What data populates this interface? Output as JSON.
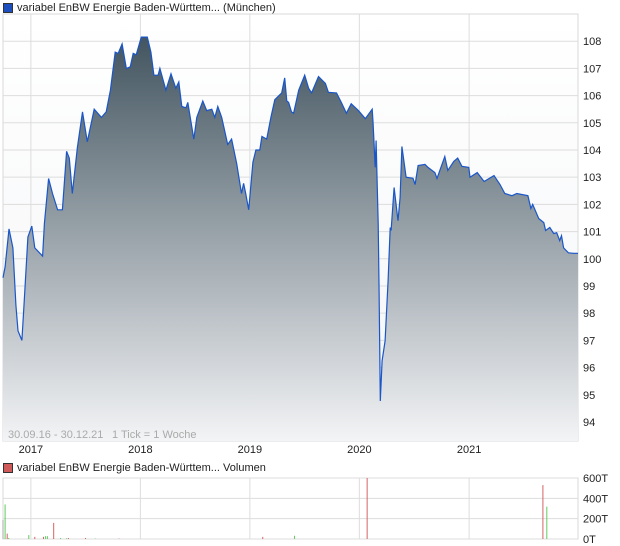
{
  "chart_data": [
    {
      "type": "area",
      "legend": "variabel EnBW Energie Baden-Württem... (München)",
      "range_note": "30.09.16 - 30.12.21",
      "tick_note": "1 Tick = 1 Woche",
      "x_ticks": [
        "2017",
        "2018",
        "2019",
        "2020",
        "2021"
      ],
      "x_range": [
        "2016-09-30",
        "2021-12-30"
      ],
      "y_ticks": [
        94,
        95,
        96,
        97,
        98,
        99,
        100,
        101,
        102,
        103,
        104,
        105,
        106,
        107,
        108
      ],
      "ylim": [
        93.3,
        109.0
      ],
      "grid": true,
      "y_axis_position": "right",
      "colors": {
        "line": "#1a56c8",
        "fill_top": "#435560",
        "fill_bottom": "#f3f4f6",
        "grid": "#dddddd"
      },
      "points": [
        [
          "2016-09-30",
          99.3
        ],
        [
          "2016-10-07",
          99.7
        ],
        [
          "2016-10-20",
          101.1
        ],
        [
          "2016-11-02",
          100.4
        ],
        [
          "2016-11-12",
          98.3
        ],
        [
          "2016-11-19",
          97.35
        ],
        [
          "2016-12-02",
          97.0
        ],
        [
          "2016-12-09",
          98.3
        ],
        [
          "2016-12-22",
          100.8
        ],
        [
          "2017-01-04",
          101.2
        ],
        [
          "2017-01-14",
          100.4
        ],
        [
          "2017-02-09",
          100.1
        ],
        [
          "2017-02-15",
          101.3
        ],
        [
          "2017-03-01",
          102.95
        ],
        [
          "2017-03-14",
          102.4
        ],
        [
          "2017-03-31",
          101.8
        ],
        [
          "2017-04-16",
          101.8
        ],
        [
          "2017-04-30",
          103.95
        ],
        [
          "2017-05-09",
          103.7
        ],
        [
          "2017-05-19",
          102.4
        ],
        [
          "2017-06-05",
          104.1
        ],
        [
          "2017-06-22",
          105.4
        ],
        [
          "2017-07-08",
          104.3
        ],
        [
          "2017-07-31",
          105.5
        ],
        [
          "2017-08-24",
          105.2
        ],
        [
          "2017-09-09",
          105.4
        ],
        [
          "2017-09-23",
          106.2
        ],
        [
          "2017-10-09",
          107.6
        ],
        [
          "2017-10-19",
          107.55
        ],
        [
          "2017-11-01",
          107.9
        ],
        [
          "2017-11-15",
          107.0
        ],
        [
          "2017-11-28",
          107.05
        ],
        [
          "2017-12-08",
          107.55
        ],
        [
          "2017-12-18",
          107.5
        ],
        [
          "2018-01-04",
          108.15
        ],
        [
          "2018-01-24",
          108.15
        ],
        [
          "2018-02-05",
          107.6
        ],
        [
          "2018-02-15",
          106.75
        ],
        [
          "2018-03-01",
          106.75
        ],
        [
          "2018-03-07",
          107.0
        ],
        [
          "2018-03-27",
          106.2
        ],
        [
          "2018-04-13",
          106.8
        ],
        [
          "2018-04-29",
          106.27
        ],
        [
          "2018-05-09",
          106.5
        ],
        [
          "2018-05-19",
          105.6
        ],
        [
          "2018-06-02",
          105.55
        ],
        [
          "2018-06-08",
          105.75
        ],
        [
          "2018-06-28",
          104.4
        ],
        [
          "2018-07-08",
          105.2
        ],
        [
          "2018-07-28",
          105.8
        ],
        [
          "2018-08-10",
          105.45
        ],
        [
          "2018-08-27",
          105.5
        ],
        [
          "2018-09-06",
          105.2
        ],
        [
          "2018-09-16",
          105.6
        ],
        [
          "2018-09-29",
          105.2
        ],
        [
          "2018-10-19",
          104.2
        ],
        [
          "2018-11-01",
          104.4
        ],
        [
          "2018-11-18",
          103.5
        ],
        [
          "2018-12-04",
          102.4
        ],
        [
          "2018-12-11",
          102.77
        ],
        [
          "2018-12-18",
          102.4
        ],
        [
          "2018-12-28",
          101.8
        ],
        [
          "2019-01-11",
          103.55
        ],
        [
          "2019-01-21",
          104.0
        ],
        [
          "2019-02-03",
          104.0
        ],
        [
          "2019-02-10",
          104.5
        ],
        [
          "2019-02-26",
          104.4
        ],
        [
          "2019-03-12",
          105.2
        ],
        [
          "2019-03-25",
          105.85
        ],
        [
          "2019-04-17",
          106.1
        ],
        [
          "2019-04-27",
          106.65
        ],
        [
          "2019-05-04",
          105.8
        ],
        [
          "2019-05-10",
          105.75
        ],
        [
          "2019-05-20",
          105.4
        ],
        [
          "2019-05-27",
          105.35
        ],
        [
          "2019-06-09",
          106.0
        ],
        [
          "2019-06-13",
          106.2
        ],
        [
          "2019-07-03",
          106.75
        ],
        [
          "2019-07-16",
          106.27
        ],
        [
          "2019-07-26",
          106.1
        ],
        [
          "2019-08-18",
          106.7
        ],
        [
          "2019-09-10",
          106.45
        ],
        [
          "2019-09-20",
          106.12
        ],
        [
          "2019-10-17",
          106.1
        ],
        [
          "2019-11-02",
          105.75
        ],
        [
          "2019-11-19",
          105.35
        ],
        [
          "2019-12-05",
          105.7
        ],
        [
          "2019-12-29",
          105.45
        ],
        [
          "2020-01-21",
          105.15
        ],
        [
          "2020-02-13",
          105.5
        ],
        [
          "2020-02-16",
          104.98
        ],
        [
          "2020-02-23",
          103.36
        ],
        [
          "2020-02-26",
          104.35
        ],
        [
          "2020-03-04",
          101.3
        ],
        [
          "2020-03-07",
          98.8
        ],
        [
          "2020-03-11",
          94.77
        ],
        [
          "2020-03-17",
          96.25
        ],
        [
          "2020-03-27",
          96.98
        ],
        [
          "2020-04-06",
          99.2
        ],
        [
          "2020-04-13",
          101.15
        ],
        [
          "2020-04-16",
          101.04
        ],
        [
          "2020-04-26",
          102.62
        ],
        [
          "2020-05-09",
          101.4
        ],
        [
          "2020-05-16",
          102.25
        ],
        [
          "2020-05-22",
          104.13
        ],
        [
          "2020-06-05",
          103.0
        ],
        [
          "2020-06-28",
          102.96
        ],
        [
          "2020-07-05",
          102.73
        ],
        [
          "2020-07-15",
          103.43
        ],
        [
          "2020-08-07",
          103.47
        ],
        [
          "2020-08-17",
          103.36
        ],
        [
          "2020-09-09",
          103.17
        ],
        [
          "2020-09-16",
          102.95
        ],
        [
          "2020-09-29",
          103.36
        ],
        [
          "2020-10-12",
          103.76
        ],
        [
          "2020-10-22",
          103.25
        ],
        [
          "2020-11-11",
          103.58
        ],
        [
          "2020-11-24",
          103.7
        ],
        [
          "2020-12-08",
          103.4
        ],
        [
          "2020-12-31",
          103.36
        ],
        [
          "2021-01-04",
          103.0
        ],
        [
          "2021-01-28",
          103.17
        ],
        [
          "2021-02-20",
          102.84
        ],
        [
          "2021-03-25",
          103.06
        ],
        [
          "2021-04-14",
          102.73
        ],
        [
          "2021-04-30",
          102.4
        ],
        [
          "2021-05-24",
          102.32
        ],
        [
          "2021-06-09",
          102.4
        ],
        [
          "2021-07-16",
          102.32
        ],
        [
          "2021-07-26",
          101.85
        ],
        [
          "2021-08-01",
          102.0
        ],
        [
          "2021-08-21",
          101.48
        ],
        [
          "2021-09-07",
          101.33
        ],
        [
          "2021-09-13",
          101.04
        ],
        [
          "2021-09-27",
          101.15
        ],
        [
          "2021-10-10",
          100.93
        ],
        [
          "2021-10-20",
          100.96
        ],
        [
          "2021-10-30",
          100.67
        ],
        [
          "2021-11-05",
          100.85
        ],
        [
          "2021-11-12",
          100.4
        ],
        [
          "2021-11-28",
          100.22
        ],
        [
          "2021-12-15",
          100.2
        ],
        [
          "2021-12-30",
          100.2
        ]
      ]
    },
    {
      "type": "bar",
      "legend": "variabel EnBW Energie Baden-Württem... Volumen",
      "y_ticks": [
        "0T",
        "200T",
        "400T",
        "600T"
      ],
      "ylim": [
        0,
        600
      ],
      "unit": "T",
      "grid": true,
      "colors": {
        "up": "#5fcc5f",
        "down": "#d46262",
        "neutral": "#aaaaaa"
      },
      "bars": [
        [
          "2016-09-30",
          187,
          "neutral"
        ],
        [
          "2016-10-07",
          340,
          "up"
        ],
        [
          "2016-10-14",
          53,
          "down"
        ],
        [
          "2016-10-19",
          10,
          "up"
        ],
        [
          "2016-12-25",
          39,
          "up"
        ],
        [
          "2017-01-14",
          21,
          "down"
        ],
        [
          "2017-02-12",
          21,
          "down"
        ],
        [
          "2017-02-19",
          28,
          "up"
        ],
        [
          "2017-02-25",
          28,
          "up"
        ],
        [
          "2017-03-18",
          159,
          "down"
        ],
        [
          "2017-04-10",
          10,
          "up"
        ],
        [
          "2017-04-30",
          7,
          "up"
        ],
        [
          "2017-05-06",
          10,
          "down"
        ],
        [
          "2017-07-02",
          10,
          "down"
        ],
        [
          "2017-08-04",
          4,
          "up"
        ],
        [
          "2017-10-22",
          4,
          "down"
        ],
        [
          "2019-02-13",
          21,
          "down"
        ],
        [
          "2019-05-30",
          32,
          "up"
        ],
        [
          "2020-01-27",
          600,
          "down"
        ],
        [
          "2021-09-04",
          530,
          "down"
        ],
        [
          "2021-09-17",
          318,
          "up"
        ]
      ]
    }
  ]
}
